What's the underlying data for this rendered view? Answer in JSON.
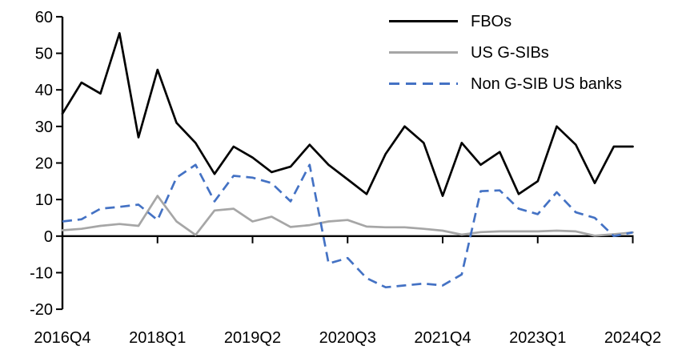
{
  "chart_data": {
    "type": "line",
    "title": "",
    "xlabel": "",
    "ylabel": "",
    "grid": false,
    "legend_position": "top-right",
    "ylim": [
      -20,
      60
    ],
    "y_ticks": [
      60,
      50,
      40,
      30,
      20,
      10,
      0,
      -10,
      -20
    ],
    "x_tick_every": 5,
    "x_tick_labels": [
      "2016Q4",
      "2018Q1",
      "2019Q2",
      "2020Q3",
      "2021Q4",
      "2023Q1",
      "2024Q2"
    ],
    "categories": [
      "2016Q4",
      "2017Q1",
      "2017Q2",
      "2017Q3",
      "2017Q4",
      "2018Q1",
      "2018Q2",
      "2018Q3",
      "2018Q4",
      "2019Q1",
      "2019Q2",
      "2019Q3",
      "2019Q4",
      "2020Q1",
      "2020Q2",
      "2020Q3",
      "2020Q4",
      "2021Q1",
      "2021Q2",
      "2021Q3",
      "2021Q4",
      "2022Q1",
      "2022Q2",
      "2022Q3",
      "2022Q4",
      "2023Q1",
      "2023Q2",
      "2023Q3",
      "2023Q4",
      "2024Q1",
      "2024Q2"
    ],
    "series": [
      {
        "name": "FBOs",
        "color": "#000000",
        "style": "solid",
        "values": [
          33.5,
          42,
          39,
          55.5,
          27,
          45.5,
          31,
          25.5,
          17,
          24.5,
          21.5,
          17.5,
          19,
          25,
          19.5,
          15.5,
          11.5,
          22.5,
          30,
          25.5,
          11,
          25.5,
          19.5,
          23,
          11.5,
          15,
          30,
          25,
          14.5,
          24.5,
          24.5
        ]
      },
      {
        "name": "US G-SIBs",
        "color": "#A6A6A6",
        "style": "solid",
        "values": [
          1.6,
          2,
          2.8,
          3.3,
          2.8,
          11,
          4,
          0.3,
          7,
          7.5,
          4,
          5.3,
          2.5,
          3,
          4,
          4.4,
          2.6,
          2.4,
          2.4,
          2,
          1.5,
          0.4,
          1.1,
          1.3,
          1.3,
          1.3,
          1.5,
          1.3,
          0.1,
          0.5,
          1
        ]
      },
      {
        "name": "Non G-SIB US banks",
        "color": "#4472C4",
        "style": "dashed",
        "values": [
          4,
          4.6,
          7.5,
          8,
          8.6,
          4.4,
          16,
          19.5,
          9.5,
          16.5,
          16,
          14.5,
          9.5,
          19.5,
          -7.5,
          -6,
          -11.5,
          -14,
          -13.5,
          -13,
          -13.5,
          -10.5,
          12.3,
          12.5,
          7.5,
          6,
          12,
          6.5,
          5,
          0,
          1
        ]
      }
    ]
  }
}
